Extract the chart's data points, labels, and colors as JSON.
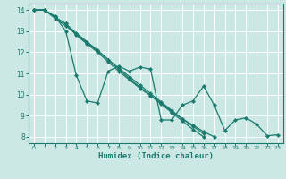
{
  "title": "",
  "xlabel": "Humidex (Indice chaleur)",
  "bg_color": "#cce8e4",
  "grid_color": "#ffffff",
  "line_color": "#1a7a6e",
  "xlim": [
    -0.5,
    23.5
  ],
  "ylim": [
    7.7,
    14.3
  ],
  "yticks": [
    8,
    9,
    10,
    11,
    12,
    13,
    14
  ],
  "xticks": [
    0,
    1,
    2,
    3,
    4,
    5,
    6,
    7,
    8,
    9,
    10,
    11,
    12,
    13,
    14,
    15,
    16,
    17,
    18,
    19,
    20,
    21,
    22,
    23
  ],
  "series": [
    [
      14.0,
      14.0,
      13.7,
      13.0,
      10.9,
      9.7,
      9.6,
      11.1,
      11.35,
      11.1,
      11.3,
      11.2,
      8.8,
      8.8,
      9.5,
      9.7,
      10.4,
      9.5,
      8.3,
      8.8,
      8.9,
      8.6,
      8.05,
      8.1
    ],
    [
      14.0,
      14.0,
      13.65,
      13.35,
      12.8,
      12.4,
      12.0,
      11.55,
      11.1,
      10.7,
      10.3,
      9.95,
      9.6,
      9.2,
      8.85,
      8.5,
      8.15,
      null,
      null,
      null,
      null,
      null,
      null,
      null
    ],
    [
      14.0,
      14.0,
      13.65,
      13.35,
      12.9,
      12.5,
      12.1,
      11.65,
      11.2,
      10.75,
      10.35,
      9.95,
      9.55,
      9.15,
      8.75,
      8.35,
      8.0,
      null,
      null,
      null,
      null,
      null,
      null,
      null
    ],
    [
      14.0,
      14.0,
      13.6,
      13.25,
      12.85,
      12.45,
      12.05,
      11.65,
      11.25,
      10.85,
      10.45,
      10.05,
      9.65,
      9.25,
      8.85,
      8.55,
      8.25,
      8.0,
      null,
      null,
      null,
      null,
      null,
      null
    ]
  ]
}
